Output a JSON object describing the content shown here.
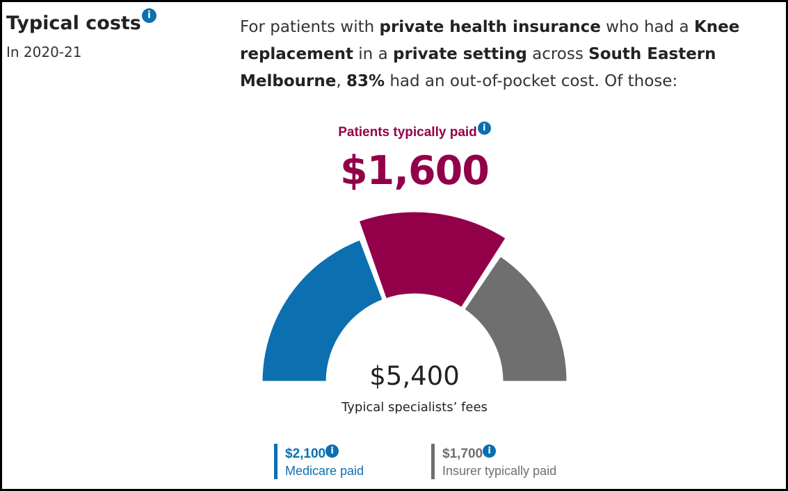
{
  "heading": {
    "title": "Typical costs",
    "period": "In 2020-21",
    "info_icon": "i"
  },
  "summary": {
    "part1": "For patients with ",
    "insurance": "private health insurance",
    "part2": " who had a ",
    "procedure": "Knee replacement",
    "part3": " in a ",
    "setting": "private setting",
    "part4": " across ",
    "region": "South Eastern Melbourne",
    "part5": ", ",
    "percent": "83%",
    "part6": " had an out-of-pocket cost. Of those:"
  },
  "patients_paid": {
    "label": "Patients typically paid",
    "amount": "$1,600",
    "info_icon": "i"
  },
  "total": {
    "amount": "$5,400",
    "label": "Typical specialists’ fees"
  },
  "legend": {
    "medicare": {
      "amount": "$2,100",
      "label": "Medicare paid",
      "info_icon": "i"
    },
    "insurer": {
      "amount": "$1,700",
      "label": "Insurer typically paid",
      "info_icon": "i"
    }
  },
  "chart_data": {
    "type": "pie",
    "variant": "half-donut gauge",
    "center_value": "$5,400",
    "center_label": "Typical specialists’ fees",
    "slices": [
      {
        "name": "Medicare paid",
        "value": 2100,
        "color": "#0b6fb0",
        "emphasized": false
      },
      {
        "name": "Patients typically paid",
        "value": 1600,
        "color": "#93004a",
        "emphasized": true
      },
      {
        "name": "Insurer typically paid",
        "value": 1700,
        "color": "#6f6f6f",
        "emphasized": false
      }
    ]
  },
  "colors": {
    "patient": "#93004a",
    "medicare": "#0b6fb0",
    "insurer": "#6f6f6f",
    "info": "#0b6fb0"
  }
}
